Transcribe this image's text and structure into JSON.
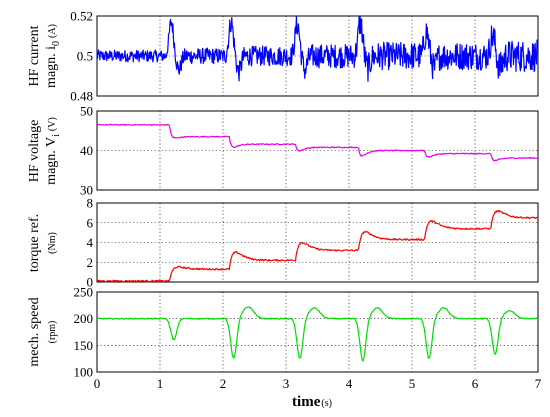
{
  "chart_data": {
    "type": "line",
    "xlim": [
      0,
      7
    ],
    "xticks": [
      "0",
      "1",
      "2",
      "3",
      "4",
      "5",
      "6",
      "7"
    ],
    "xlabel": "time",
    "xlabel_unit": "(s)",
    "grid": true,
    "panels": [
      {
        "ylabel_line1": "HF current",
        "ylabel_line2": "magn. i",
        "ylabel_sub": "0",
        "ylabel_unit": "(A)",
        "ylim": [
          0.48,
          0.52
        ],
        "yticks": [
          "0.52",
          "0.5",
          "0.48"
        ],
        "color": "#0000ff",
        "series": {
          "base": 0.5,
          "noise_amp": [
            0.003,
            0.004,
            0.005,
            0.006,
            0.007,
            0.007,
            0.008
          ],
          "steps_t": [
            1.15,
            2.1,
            3.15,
            4.15,
            5.2,
            6.25
          ],
          "step_peak": [
            0.017,
            0.017,
            0.016,
            0.017,
            0.012,
            0.01
          ],
          "step_dip": [
            -0.007,
            -0.008,
            -0.007,
            -0.006,
            -0.006,
            -0.006
          ]
        }
      },
      {
        "ylabel_line1": "HF voltage",
        "ylabel_line2": "magn. V",
        "ylabel_sub": "i",
        "ylabel_unit": "(V)",
        "ylim": [
          30,
          50
        ],
        "yticks": [
          "50",
          "40",
          "30"
        ],
        "color": "#e600e6",
        "series": {
          "levels": [
            46.5,
            43.5,
            41.6,
            40.8,
            40.0,
            39.2,
            38.1
          ],
          "steps_t": [
            1.15,
            2.1,
            3.15,
            4.15,
            5.2,
            6.25
          ],
          "undershoot": [
            -0.6,
            -1.0,
            -1.0,
            -1.5,
            -1.0,
            -0.8
          ]
        }
      },
      {
        "ylabel_line1": "torque ref.",
        "ylabel_line2": "",
        "ylabel_sub": "",
        "ylabel_unit": "(Nm)",
        "ylim": [
          0,
          8
        ],
        "yticks": [
          "8",
          "6",
          "4",
          "2",
          "0"
        ],
        "color": "#ff0000",
        "series": {
          "levels": [
            0.1,
            1.3,
            2.2,
            3.2,
            4.3,
            5.4,
            6.5
          ],
          "steps_t": [
            1.15,
            2.1,
            3.15,
            4.15,
            5.2,
            6.25
          ],
          "overshoot": [
            0.4,
            1.0,
            1.0,
            1.0,
            1.0,
            0.9
          ]
        }
      },
      {
        "ylabel_line1": "mech. speed",
        "ylabel_line2": "",
        "ylabel_sub": "",
        "ylabel_unit": "(rpm)",
        "ylim": [
          100,
          250
        ],
        "yticks": [
          "250",
          "200",
          "150",
          "100"
        ],
        "color": "#00dd00",
        "series": {
          "base": 200,
          "steps_t": [
            1.15,
            2.1,
            3.15,
            4.15,
            5.2,
            6.25
          ],
          "dip_min": [
            160,
            125,
            125,
            120,
            125,
            133
          ],
          "rebound_max": [
            200,
            222,
            220,
            220,
            220,
            215
          ]
        }
      }
    ]
  }
}
